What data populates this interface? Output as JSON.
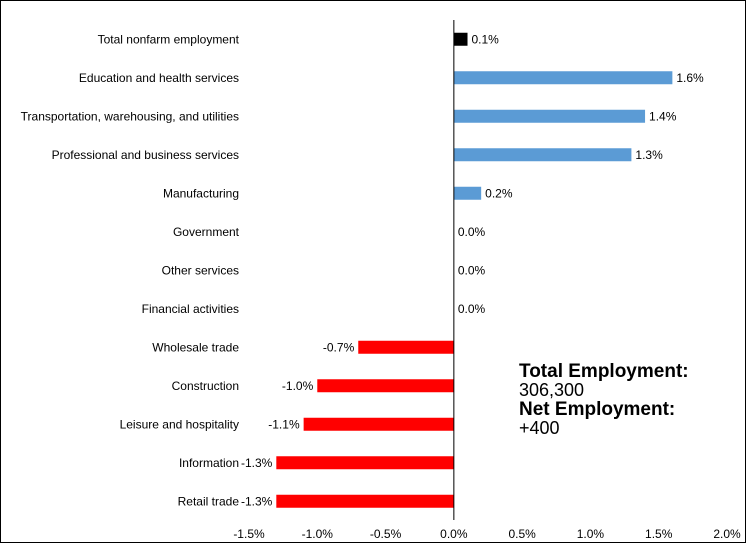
{
  "chart_data": {
    "type": "bar",
    "orientation": "horizontal",
    "categories": [
      "Total nonfarm employment",
      "Education and health services",
      "Transportation, warehousing, and utilities",
      "Professional and business services",
      "Manufacturing",
      "Government",
      "Other services",
      "Financial activities",
      "Wholesale trade",
      "Construction",
      "Leisure and hospitality",
      "Information",
      "Retail trade"
    ],
    "values": [
      0.1,
      1.6,
      1.4,
      1.3,
      0.2,
      0.0,
      0.0,
      0.0,
      -0.7,
      -1.0,
      -1.1,
      -1.3,
      -1.3
    ],
    "value_labels": [
      "0.1%",
      "1.6%",
      "1.4%",
      "1.3%",
      "0.2%",
      "0.0%",
      "0.0%",
      "0.0%",
      "-0.7%",
      "-1.0%",
      "-1.1%",
      "-1.3%",
      "-1.3%"
    ],
    "xlim": [
      -1.5,
      2.0
    ],
    "xticks": [
      -1.5,
      -1.0,
      -0.5,
      0.0,
      0.5,
      1.0,
      1.5,
      2.0
    ],
    "xtick_labels": [
      "-1.5%",
      "-1.0%",
      "-0.5%",
      "0.0%",
      "0.5%",
      "1.0%",
      "1.5%",
      "2.0%"
    ],
    "grid": false,
    "colors": {
      "total": "#000000",
      "positive": "#5b9bd5",
      "negative": "#ff0000"
    }
  },
  "summary": {
    "total_label": "Total Employment:",
    "total_value": "306,300",
    "net_label": "Net Employment:",
    "net_value": "+400"
  }
}
